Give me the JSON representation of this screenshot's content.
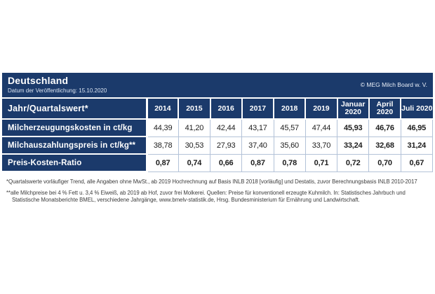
{
  "header": {
    "title": "Deutschland",
    "subtitle": "Datum der Veröffentlichung: 15.10.2020",
    "copyright": "© MEG Milch Board w. V."
  },
  "table": {
    "corner_label": "Jahr/Quartalswert*",
    "columns": [
      "2014",
      "2015",
      "2016",
      "2017",
      "2018",
      "2019",
      "Januar 2020",
      "April 2020",
      "Juli 2020"
    ],
    "rows": [
      {
        "label": "Milcherzeugungskosten in ct/kg",
        "values": [
          "44,39",
          "41,20",
          "42,44",
          "43,17",
          "45,57",
          "47,44",
          "45,93",
          "46,76",
          "46,95"
        ]
      },
      {
        "label": "Milchauszahlungspreis in ct/kg**",
        "values": [
          "38,78",
          "30,53",
          "27,93",
          "37,40",
          "35,60",
          "33,70",
          "33,24",
          "32,68",
          "31,24"
        ]
      },
      {
        "label": "Preis-Kosten-Ratio",
        "values": [
          "0,87",
          "0,74",
          "0,66",
          "0,87",
          "0,78",
          "0,71",
          "0,72",
          "0,70",
          "0,67"
        ]
      }
    ]
  },
  "footnotes": [
    "*Quartalswerte vorläufiger Trend, alle Angaben ohne MwSt., ab 2019 Hochrechnung auf Basis INLB 2018 [vorläufig] und Destatis, zuvor Berechnungsbasis INLB 2010-2017",
    "**alle Milchpreise bei 4 % Fett u. 3,4 % Eiweiß, ab 2019 ab Hof, zuvor frei Molkerei. Quellen: Preise für konventionell erzeugte Kuhmilch. In: Statistisches Jahrbuch und Statistische Monatsberichte BMEL, verschiedene Jahrgänge, www.bmelv-statistik.de, Hrsg. Bundesministerium für Ernährung und Landwirtschaft."
  ],
  "colors": {
    "navy": "#1b3a6b",
    "grid_line": "#b3c2d8",
    "value_text": "#1c1c1c",
    "background": "#ffffff"
  },
  "chart_data": {
    "type": "table",
    "title": "Deutschland",
    "categories": [
      "2014",
      "2015",
      "2016",
      "2017",
      "2018",
      "2019",
      "Januar 2020",
      "April 2020",
      "Juli 2020"
    ],
    "series": [
      {
        "name": "Milcherzeugungskosten in ct/kg",
        "values": [
          44.39,
          41.2,
          42.44,
          43.17,
          45.57,
          47.44,
          45.93,
          46.76,
          46.95
        ]
      },
      {
        "name": "Milchauszahlungspreis in ct/kg",
        "values": [
          38.78,
          30.53,
          27.93,
          37.4,
          35.6,
          33.7,
          33.24,
          32.68,
          31.24
        ]
      },
      {
        "name": "Preis-Kosten-Ratio",
        "values": [
          0.87,
          0.74,
          0.66,
          0.87,
          0.78,
          0.71,
          0.72,
          0.7,
          0.67
        ]
      }
    ]
  }
}
